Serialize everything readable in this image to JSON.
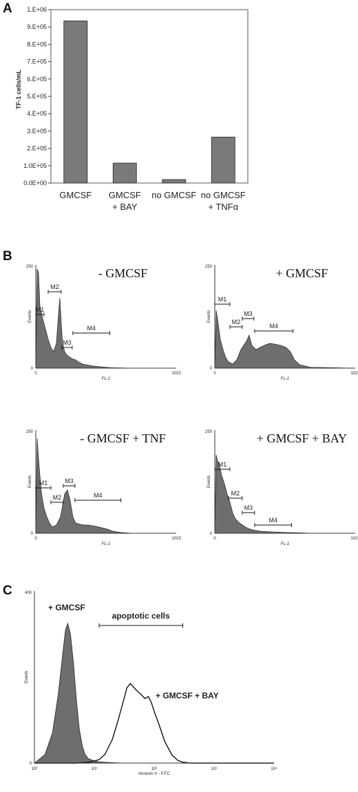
{
  "chart_data": [
    {
      "panel": "A",
      "type": "bar",
      "categories": [
        "GMCSF",
        "GMCSF\n+ BAY",
        "no GMCSF",
        "no GMCSF\n+ TNFα"
      ],
      "values": [
        935000,
        115000,
        20000,
        265000
      ],
      "ylabel": "TF-1 cells/mL",
      "ylim": [
        0,
        1000000
      ],
      "yticks": [
        "0.0E+00",
        "1.0E+05",
        "2.E+05",
        "3.E+05",
        "4.E+05",
        "5.E+05",
        "6.E+05",
        "7.E+05",
        "8.E+05",
        "9.E+05",
        "1.E+06"
      ],
      "bar_color": "#7a7a7a"
    },
    {
      "panel": "B",
      "type": "area",
      "subplots": [
        {
          "title": "- GMCSF",
          "xlabel": "FL-2",
          "ylabel": "Events",
          "xlim": [
            0,
            1023
          ],
          "ylim": [
            0,
            250
          ],
          "x_tick_labels": [
            "0",
            "1023"
          ],
          "y_tick_labels": [
            "0",
            "250"
          ],
          "markers": [
            {
              "name": "M1",
              "from": 0,
              "to": 60,
              "level": 130
            },
            {
              "name": "M2",
              "from": 90,
              "to": 185,
              "level": 185
            },
            {
              "name": "M3",
              "from": 190,
              "to": 265,
              "level": 50
            },
            {
              "name": "M4",
              "from": 270,
              "to": 540,
              "level": 85
            }
          ],
          "x": [
            0,
            10,
            20,
            30,
            50,
            70,
            90,
            110,
            130,
            150,
            165,
            175,
            185,
            195,
            210,
            225,
            240,
            255,
            270,
            290,
            310,
            340,
            370,
            420,
            480,
            550,
            700,
            1023
          ],
          "y": [
            0,
            240,
            230,
            150,
            120,
            95,
            70,
            50,
            40,
            60,
            130,
            170,
            110,
            60,
            40,
            32,
            28,
            25,
            22,
            20,
            15,
            10,
            8,
            5,
            3,
            1,
            0,
            0
          ]
        },
        {
          "title": "+ GMCSF",
          "xlabel": "FL-2",
          "ylabel": "Events",
          "xlim": [
            0,
            1023
          ],
          "ylim": [
            0,
            250
          ],
          "x_tick_labels": [
            "0",
            "1023"
          ],
          "y_tick_labels": [
            "0",
            "250"
          ],
          "markers": [
            {
              "name": "M1",
              "from": 0,
              "to": 110,
              "level": 155
            },
            {
              "name": "M2",
              "from": 110,
              "to": 200,
              "level": 100
            },
            {
              "name": "M3",
              "from": 200,
              "to": 285,
              "level": 120
            },
            {
              "name": "M4",
              "from": 290,
              "to": 570,
              "level": 90
            }
          ],
          "x": [
            0,
            10,
            20,
            40,
            60,
            80,
            100,
            130,
            160,
            190,
            210,
            230,
            250,
            270,
            300,
            330,
            360,
            400,
            440,
            480,
            520,
            550,
            580,
            620,
            700,
            1023
          ],
          "y": [
            0,
            140,
            120,
            70,
            45,
            25,
            15,
            10,
            20,
            45,
            55,
            65,
            80,
            55,
            45,
            50,
            55,
            60,
            58,
            55,
            50,
            40,
            20,
            8,
            2,
            0
          ]
        },
        {
          "title": "- GMCSF + TNF",
          "xlabel": "FL-2",
          "ylabel": "Events",
          "xlim": [
            0,
            1023
          ],
          "ylim": [
            0,
            250
          ],
          "x_tick_labels": [
            "0",
            "1023"
          ],
          "y_tick_labels": [
            "0",
            "250"
          ],
          "markers": [
            {
              "name": "M1",
              "from": 0,
              "to": 110,
              "level": 110
            },
            {
              "name": "M2",
              "from": 110,
              "to": 200,
              "level": 75
            },
            {
              "name": "M3",
              "from": 200,
              "to": 285,
              "level": 115
            },
            {
              "name": "M4",
              "from": 285,
              "to": 620,
              "level": 80
            }
          ],
          "x": [
            0,
            10,
            20,
            40,
            60,
            80,
            100,
            120,
            150,
            180,
            210,
            230,
            250,
            270,
            290,
            320,
            350,
            380,
            420,
            460,
            520,
            560,
            620,
            700,
            1023
          ],
          "y": [
            0,
            230,
            180,
            100,
            60,
            40,
            25,
            15,
            20,
            40,
            95,
            105,
            80,
            40,
            25,
            22,
            20,
            20,
            18,
            15,
            10,
            5,
            2,
            0,
            0
          ]
        },
        {
          "title": "+ GMCSF + BAY",
          "xlabel": "FL-2",
          "ylabel": "Events",
          "xlim": [
            0,
            1023
          ],
          "ylim": [
            0,
            250
          ],
          "x_tick_labels": [
            "0",
            "1023"
          ],
          "y_tick_labels": [
            "0",
            "250"
          ],
          "markers": [
            {
              "name": "M1",
              "from": 0,
              "to": 110,
              "level": 155
            },
            {
              "name": "M2",
              "from": 100,
              "to": 200,
              "level": 85
            },
            {
              "name": "M3",
              "from": 200,
              "to": 290,
              "level": 50
            },
            {
              "name": "M4",
              "from": 290,
              "to": 560,
              "level": 20
            }
          ],
          "x": [
            0,
            10,
            20,
            30,
            50,
            70,
            90,
            110,
            130,
            150,
            180,
            210,
            240,
            280,
            330,
            380,
            440,
            520,
            620,
            700,
            1023
          ],
          "y": [
            0,
            190,
            175,
            170,
            140,
            120,
            95,
            75,
            50,
            35,
            25,
            18,
            12,
            8,
            5,
            4,
            3,
            2,
            1,
            0,
            0
          ]
        }
      ]
    },
    {
      "panel": "C",
      "type": "area",
      "xlabel": "Annexin V - FITC",
      "ylabel": "Events",
      "xscale": "log",
      "xlim": [
        1,
        10000
      ],
      "ylim": [
        0,
        400
      ],
      "x_tick_labels": [
        "10⁰",
        "10¹",
        "10²",
        "10³",
        "10⁴"
      ],
      "y_tick_labels": [
        "0",
        "400"
      ],
      "annotations": [
        "+ GMCSF",
        "apoptotic cells",
        "+ GMCSF + BAY"
      ],
      "apoptotic_marker": {
        "from": 12,
        "to": 300
      },
      "series": [
        {
          "name": "+ GMCSF",
          "style": "filled",
          "x": [
            1,
            1.5,
            2,
            2.5,
            3,
            3.3,
            3.6,
            4,
            4.5,
            5,
            5.6,
            6.3,
            7,
            8,
            10,
            12,
            15,
            20,
            30,
            50,
            100,
            10000
          ],
          "y": [
            0,
            20,
            70,
            160,
            260,
            310,
            325,
            300,
            230,
            150,
            80,
            40,
            20,
            10,
            5,
            3,
            2,
            1,
            0,
            0,
            0,
            0
          ]
        },
        {
          "name": "+ GMCSF + BAY",
          "style": "outline",
          "x": [
            1,
            5,
            8,
            12,
            15,
            20,
            25,
            30,
            35,
            40,
            50,
            60,
            70,
            80,
            90,
            100,
            120,
            150,
            200,
            250,
            300,
            400,
            10000
          ],
          "y": [
            0,
            0,
            2,
            8,
            20,
            55,
            100,
            140,
            175,
            185,
            170,
            160,
            150,
            155,
            140,
            120,
            90,
            50,
            18,
            6,
            2,
            0,
            0
          ]
        }
      ]
    }
  ]
}
